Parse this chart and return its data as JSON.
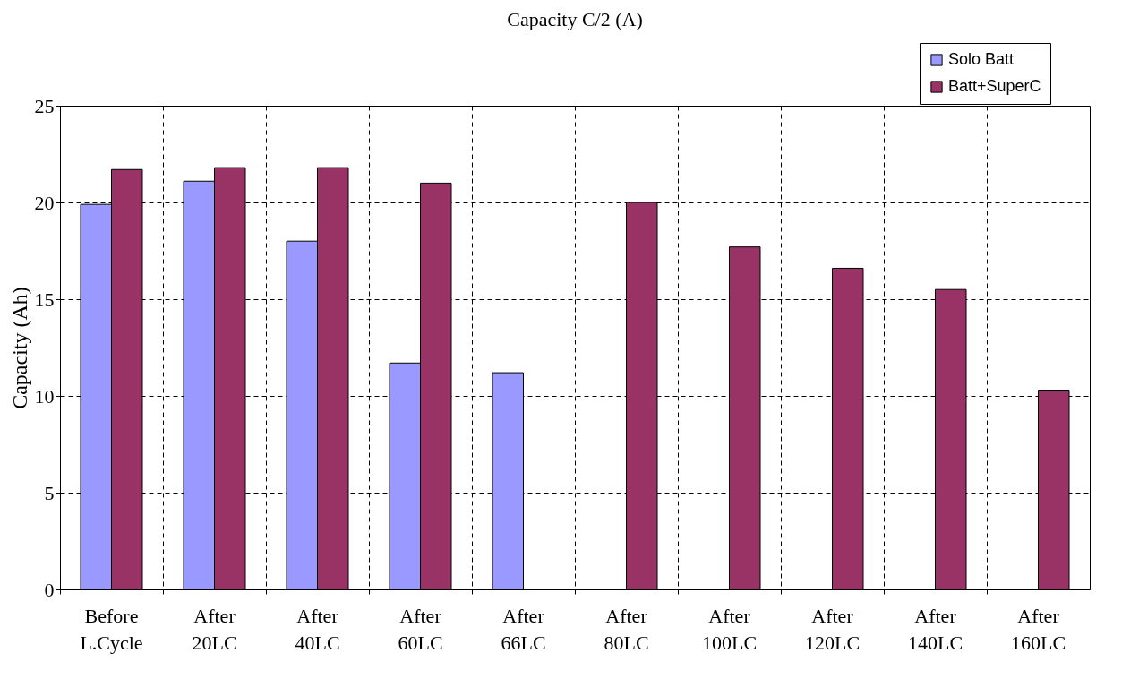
{
  "chart_data": {
    "type": "bar",
    "title": "Capacity C/2 (A)",
    "ylabel": "Capacity (Ah)",
    "categories": [
      "Before L.Cycle",
      "After 20LC",
      "After 40LC",
      "After 60LC",
      "After 66LC",
      "After 80LC",
      "After 100LC",
      "After 120LC",
      "After 140LC",
      "After 160LC"
    ],
    "series": [
      {
        "name": "Solo Batt",
        "color": "#9999ff",
        "values": [
          19.9,
          21.1,
          18.0,
          11.7,
          11.2,
          null,
          null,
          null,
          null,
          null
        ]
      },
      {
        "name": "Batt+SuperC",
        "color": "#993366",
        "values": [
          21.7,
          21.8,
          21.8,
          21.0,
          null,
          20.0,
          17.7,
          16.6,
          15.5,
          10.3
        ]
      }
    ],
    "ylim": [
      0,
      25
    ],
    "yticks": [
      0,
      5,
      10,
      15,
      20,
      25
    ],
    "grid": true,
    "legend": "top right"
  }
}
